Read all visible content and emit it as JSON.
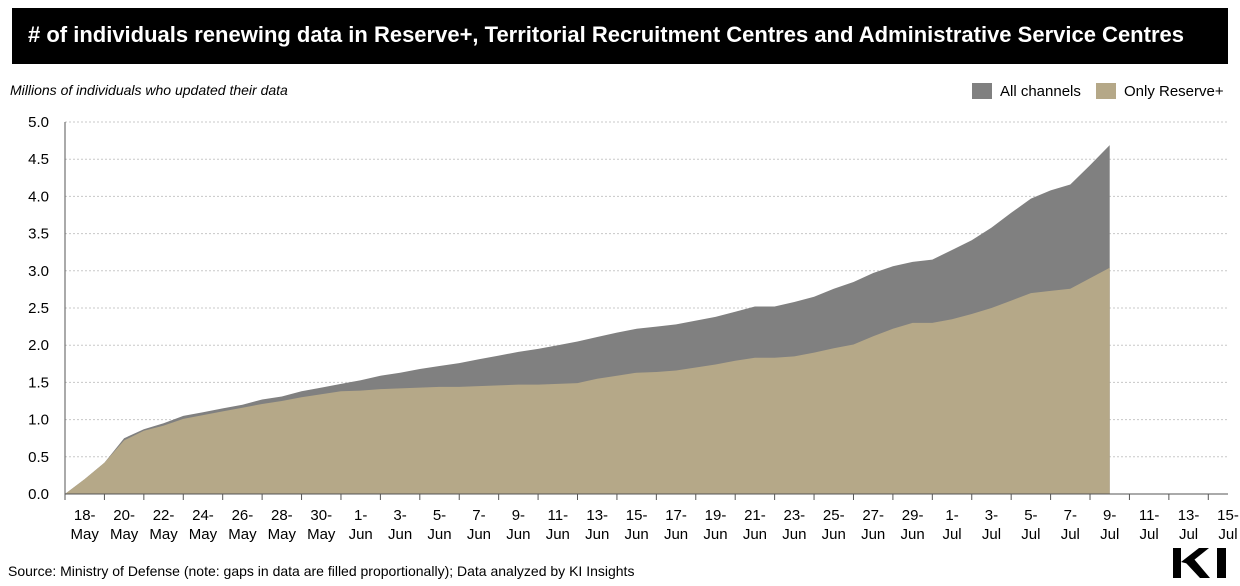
{
  "header": {
    "title": "# of individuals renewing data in Reserve+, Territorial Recruitment Centres and Administrative Service Centres"
  },
  "legend": [
    {
      "label": "All channels",
      "color": "#808080"
    },
    {
      "label": "Only Reserve+",
      "color": "#b5a888"
    }
  ],
  "footer": {
    "source": "Source: Ministry of Defense (note: gaps in data are filled proportionally); Data analyzed by KI Insights",
    "logo_text": "KI"
  },
  "chart_data": {
    "type": "area",
    "title": "# of individuals renewing data in Reserve+, Territorial Recruitment Centres and Administrative Service Centres",
    "ylabel": "Millions of individuals who updated their data",
    "xlabel": "",
    "ylim": [
      0,
      5.0
    ],
    "yticks": [
      "0.0",
      "0.5",
      "1.0",
      "1.5",
      "2.0",
      "2.5",
      "3.0",
      "3.5",
      "4.0",
      "4.5",
      "5.0"
    ],
    "ytick_values": [
      0,
      0.5,
      1.0,
      1.5,
      2.0,
      2.5,
      3.0,
      3.5,
      4.0,
      4.5,
      5.0
    ],
    "grid": true,
    "legend_position": "top-right",
    "x_tick_labels": [
      {
        "day": "18-",
        "month": "May"
      },
      {
        "day": "20-",
        "month": "May"
      },
      {
        "day": "22-",
        "month": "May"
      },
      {
        "day": "24-",
        "month": "May"
      },
      {
        "day": "26-",
        "month": "May"
      },
      {
        "day": "28-",
        "month": "May"
      },
      {
        "day": "30-",
        "month": "May"
      },
      {
        "day": "1-",
        "month": "Jun"
      },
      {
        "day": "3-",
        "month": "Jun"
      },
      {
        "day": "5-",
        "month": "Jun"
      },
      {
        "day": "7-",
        "month": "Jun"
      },
      {
        "day": "9-",
        "month": "Jun"
      },
      {
        "day": "11-",
        "month": "Jun"
      },
      {
        "day": "13-",
        "month": "Jun"
      },
      {
        "day": "15-",
        "month": "Jun"
      },
      {
        "day": "17-",
        "month": "Jun"
      },
      {
        "day": "19-",
        "month": "Jun"
      },
      {
        "day": "21-",
        "month": "Jun"
      },
      {
        "day": "23-",
        "month": "Jun"
      },
      {
        "day": "25-",
        "month": "Jun"
      },
      {
        "day": "27-",
        "month": "Jun"
      },
      {
        "day": "29-",
        "month": "Jun"
      },
      {
        "day": "1-",
        "month": "Jul"
      },
      {
        "day": "3-",
        "month": "Jul"
      },
      {
        "day": "5-",
        "month": "Jul"
      },
      {
        "day": "7-",
        "month": "Jul"
      },
      {
        "day": "9-",
        "month": "Jul"
      },
      {
        "day": "11-",
        "month": "Jul"
      },
      {
        "day": "13-",
        "month": "Jul"
      },
      {
        "day": "15-",
        "month": "Jul"
      }
    ],
    "x_day_index_range": [
      0,
      59
    ],
    "series": [
      {
        "name": "All channels",
        "color": "#808080",
        "values": [
          0.0,
          0.2,
          0.42,
          0.75,
          0.87,
          0.95,
          1.05,
          1.1,
          1.15,
          1.2,
          1.27,
          1.31,
          1.38,
          1.43,
          1.48,
          1.53,
          1.59,
          1.63,
          1.68,
          1.72,
          1.76,
          1.81,
          1.86,
          1.91,
          1.95,
          2.0,
          2.05,
          2.11,
          2.17,
          2.22,
          2.25,
          2.28,
          2.33,
          2.38,
          2.45,
          2.52,
          2.52,
          2.58,
          2.65,
          2.76,
          2.85,
          2.97,
          3.06,
          3.12,
          3.15,
          3.28,
          3.41,
          3.58,
          3.78,
          3.97,
          4.08,
          4.16,
          4.42,
          4.69
        ]
      },
      {
        "name": "Only Reserve+",
        "color": "#b5a888",
        "values": [
          0.0,
          0.2,
          0.42,
          0.72,
          0.85,
          0.92,
          1.01,
          1.06,
          1.11,
          1.16,
          1.21,
          1.25,
          1.3,
          1.34,
          1.38,
          1.39,
          1.41,
          1.42,
          1.43,
          1.44,
          1.44,
          1.45,
          1.46,
          1.47,
          1.47,
          1.48,
          1.49,
          1.55,
          1.59,
          1.63,
          1.64,
          1.66,
          1.7,
          1.74,
          1.79,
          1.83,
          1.83,
          1.85,
          1.9,
          1.96,
          2.01,
          2.12,
          2.22,
          2.3,
          2.3,
          2.35,
          2.42,
          2.5,
          2.6,
          2.7,
          2.73,
          2.76,
          2.9,
          3.04
        ]
      }
    ],
    "x_day_index": [
      0,
      1,
      2,
      3,
      4,
      5,
      6,
      7,
      8,
      9,
      10,
      11,
      12,
      13,
      14,
      15,
      16,
      17,
      18,
      19,
      20,
      21,
      22,
      23,
      24,
      25,
      26,
      27,
      28,
      29,
      30,
      31,
      32,
      33,
      34,
      35,
      36,
      37,
      38,
      39,
      40,
      41,
      42,
      43,
      44,
      45,
      46,
      47,
      48,
      49,
      50,
      51,
      52,
      53
    ]
  }
}
